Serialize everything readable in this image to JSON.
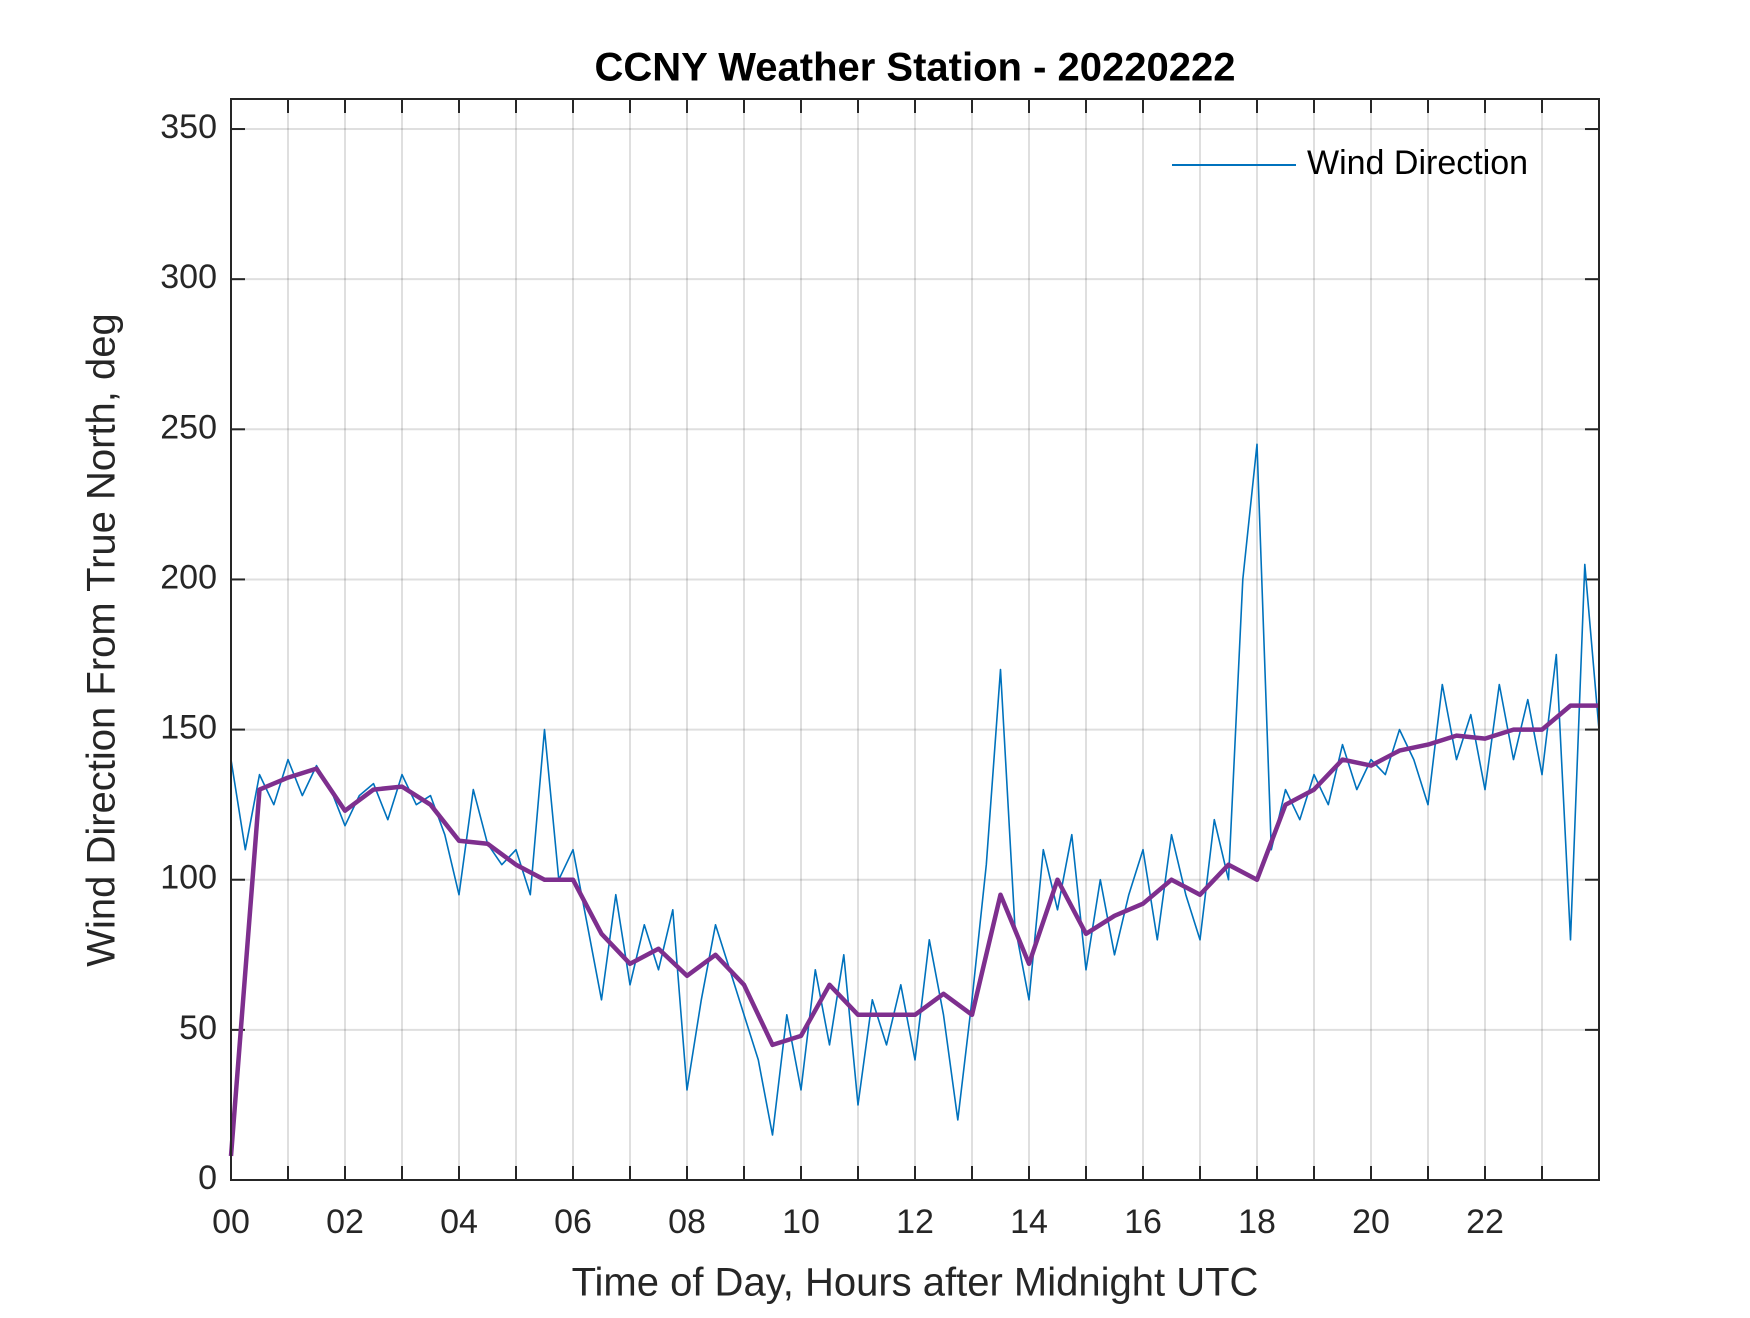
{
  "chart_data": {
    "type": "line",
    "title": "CCNY Weather Station - 20220222",
    "x_label": "Time of Day, Hours after Midnight UTC",
    "y_label": "Wind Direction From True North, deg",
    "xlim": [
      0,
      24
    ],
    "xticks": [
      {
        "value": 0,
        "label": "00"
      },
      {
        "value": 2,
        "label": "02"
      },
      {
        "value": 4,
        "label": "04"
      },
      {
        "value": 6,
        "label": "06"
      },
      {
        "value": 8,
        "label": "08"
      },
      {
        "value": 10,
        "label": "10"
      },
      {
        "value": 12,
        "label": "12"
      },
      {
        "value": 14,
        "label": "14"
      },
      {
        "value": 16,
        "label": "16"
      },
      {
        "value": 18,
        "label": "18"
      },
      {
        "value": 20,
        "label": "20"
      },
      {
        "value": 22,
        "label": "22"
      }
    ],
    "xminor_ticks": [
      1,
      3,
      5,
      7,
      9,
      11,
      13,
      15,
      17,
      19,
      21,
      23
    ],
    "ylim": [
      0,
      360
    ],
    "yticks": [
      0,
      50,
      100,
      150,
      200,
      250,
      300,
      350
    ],
    "grid": true,
    "legend": "northeast",
    "series": [
      {
        "name": "Wind Direction",
        "color": "#0072bd",
        "x": [
          0,
          0.25,
          0.5,
          0.75,
          1,
          1.25,
          1.5,
          1.75,
          2,
          2.25,
          2.5,
          2.75,
          3,
          3.25,
          3.5,
          3.75,
          4,
          4.25,
          4.5,
          4.75,
          5,
          5.25,
          5.5,
          5.75,
          6,
          6.25,
          6.5,
          6.75,
          7,
          7.25,
          7.5,
          7.75,
          8,
          8.25,
          8.5,
          8.75,
          9,
          9.25,
          9.5,
          9.75,
          10,
          10.25,
          10.5,
          10.75,
          11,
          11.25,
          11.5,
          11.75,
          12,
          12.25,
          12.5,
          12.75,
          13,
          13.25,
          13.5,
          13.75,
          14,
          14.25,
          14.5,
          14.75,
          15,
          15.25,
          15.5,
          15.75,
          16,
          16.25,
          16.5,
          16.75,
          17,
          17.25,
          17.5,
          17.75,
          18,
          18.25,
          18.5,
          18.75,
          19,
          19.25,
          19.5,
          19.75,
          20,
          20.25,
          20.5,
          20.75,
          21,
          21.25,
          21.5,
          21.75,
          22,
          22.25,
          22.5,
          22.75,
          23,
          23.25,
          23.5,
          23.75,
          24
        ],
        "values": [
          140,
          110,
          135,
          125,
          140,
          128,
          138,
          130,
          118,
          128,
          132,
          120,
          135,
          125,
          128,
          115,
          95,
          130,
          112,
          105,
          110,
          95,
          150,
          100,
          110,
          85,
          60,
          95,
          65,
          85,
          70,
          90,
          30,
          60,
          85,
          70,
          55,
          40,
          15,
          55,
          30,
          70,
          45,
          75,
          25,
          60,
          45,
          65,
          40,
          80,
          55,
          20,
          60,
          105,
          170,
          85,
          60,
          110,
          90,
          115,
          70,
          100,
          75,
          95,
          110,
          80,
          115,
          95,
          80,
          120,
          100,
          200,
          245,
          110,
          130,
          120,
          135,
          125,
          145,
          130,
          140,
          135,
          150,
          140,
          125,
          165,
          140,
          155,
          130,
          165,
          140,
          160,
          135,
          175,
          80,
          205,
          150
        ]
      },
      {
        "color": "#7e2f8e",
        "x": [
          0,
          0.5,
          1,
          1.5,
          2,
          2.5,
          3,
          3.5,
          4,
          4.5,
          5,
          5.5,
          6,
          6.5,
          7,
          7.5,
          8,
          8.5,
          9,
          9.5,
          10,
          10.5,
          11,
          11.5,
          12,
          12.5,
          13,
          13.5,
          14,
          14.5,
          15,
          15.5,
          16,
          16.5,
          17,
          17.5,
          18,
          18.5,
          19,
          19.5,
          20,
          20.5,
          21,
          21.5,
          22,
          22.5,
          23,
          23.5,
          24
        ],
        "values": [
          8,
          130,
          134,
          137,
          123,
          130,
          131,
          125,
          113,
          112,
          105,
          100,
          100,
          82,
          72,
          77,
          68,
          75,
          65,
          45,
          48,
          65,
          55,
          55,
          55,
          62,
          55,
          95,
          72,
          100,
          82,
          88,
          92,
          100,
          95,
          105,
          100,
          125,
          130,
          140,
          138,
          143,
          145,
          148,
          147,
          150,
          150,
          158,
          158
        ]
      }
    ]
  }
}
